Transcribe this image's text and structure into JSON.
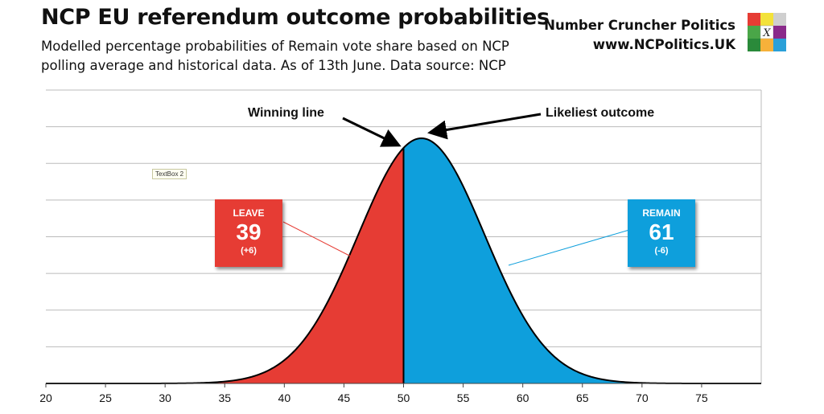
{
  "title": "NCP EU referendum outcome probabilities",
  "subtitle": "Modelled percentage probabilities of Remain vote share based on NCP polling average and historical data. As of 13th June. Data source: NCP",
  "brand": {
    "name": "Number Cruncher Politics",
    "url": "www.NCPolitics.UK",
    "logo_mark": "X"
  },
  "textbox_label": "TextBox 2",
  "annotations": {
    "winning_line": "Winning line",
    "likeliest_outcome": "Likeliest outcome"
  },
  "leave": {
    "label": "LEAVE",
    "value": "39",
    "change": "(+6)",
    "color": "#e63c34"
  },
  "remain": {
    "label": "REMAIN",
    "value": "61",
    "change": "(-6)",
    "color": "#0e9fdc"
  },
  "chart_data": {
    "type": "area",
    "x_ticks": [
      20,
      25,
      30,
      35,
      40,
      45,
      50,
      55,
      60,
      65,
      70,
      75
    ],
    "xlim": [
      20,
      80
    ],
    "distribution": {
      "mean": 51.5,
      "sd": 5.3
    },
    "split_at": 50,
    "grid": true,
    "regions": [
      {
        "name": "LEAVE",
        "range": [
          20,
          50
        ],
        "color": "#e63c34"
      },
      {
        "name": "REMAIN",
        "range": [
          50,
          80
        ],
        "color": "#0e9fdc"
      }
    ]
  }
}
